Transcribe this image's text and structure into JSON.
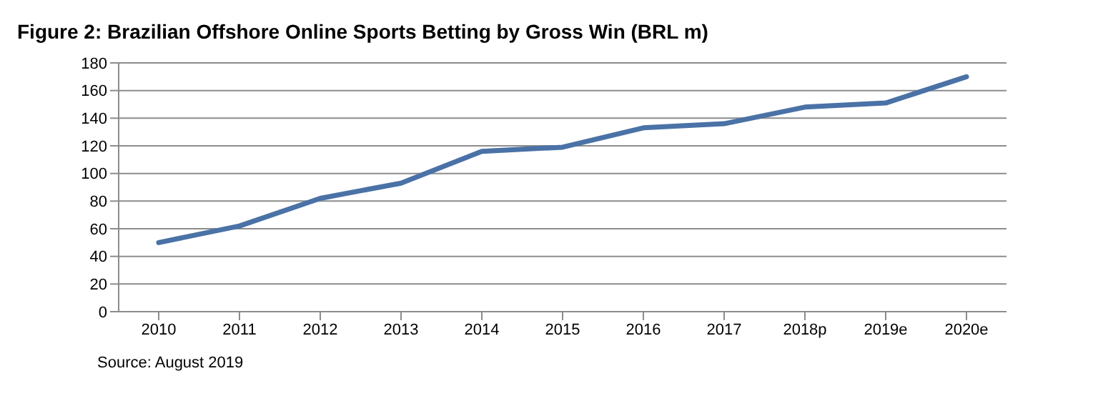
{
  "chart_data": {
    "type": "line",
    "title": "Figure 2: Brazilian Offshore Online Sports Betting by Gross Win (BRL m)",
    "categories": [
      "2010",
      "2011",
      "2012",
      "2013",
      "2014",
      "2015",
      "2016",
      "2017",
      "2018p",
      "2019e",
      "2020e"
    ],
    "series": [
      {
        "color": "#4a72a6",
        "values": [
          50,
          62,
          82,
          93,
          116,
          119,
          133,
          136,
          148,
          151,
          170
        ]
      }
    ],
    "ylim": [
      0,
      180
    ],
    "yticks": [
      0,
      20,
      40,
      60,
      80,
      100,
      120,
      140,
      160,
      180
    ],
    "grid": "y",
    "marker": "none",
    "line_style": "solid",
    "annotations": [
      "Source: August 2019"
    ]
  }
}
